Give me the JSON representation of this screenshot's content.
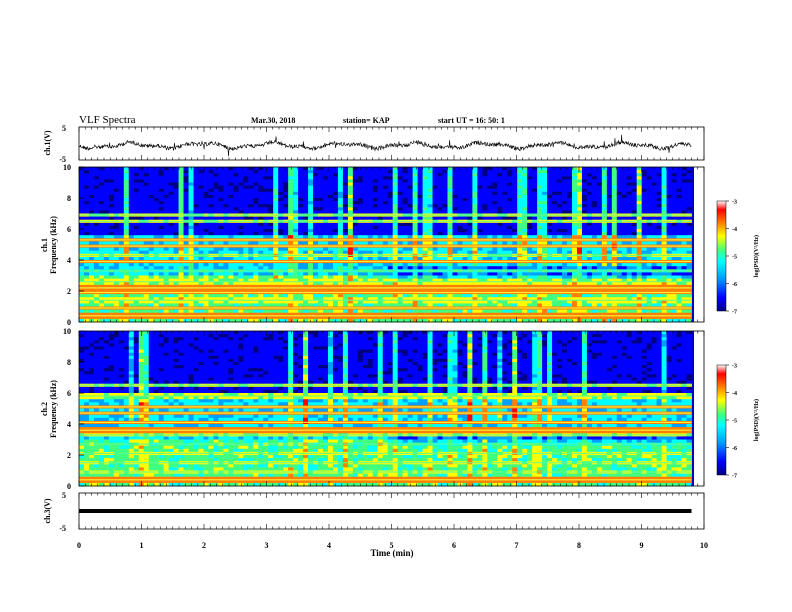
{
  "header": {
    "title": "VLF Spectra",
    "date": "Mar.30, 2018",
    "station": "station= KAP",
    "start_ut": "start UT = 16: 50: 1"
  },
  "chart_data": [
    {
      "type": "line",
      "name": "ch1-waveform",
      "ylabel": "ch.1(V)",
      "ylim": [
        -5,
        5
      ],
      "yticks": [
        "5",
        "-5"
      ],
      "xlim": [
        0,
        10
      ]
    },
    {
      "type": "heatmap",
      "name": "ch1-spectrogram",
      "ylabel_line1": "ch.1",
      "ylabel_line2": "Frequency (kHz)",
      "ylim": [
        0,
        10
      ],
      "yticks": [
        "0",
        "2",
        "4",
        "6",
        "8",
        "10"
      ],
      "xlim": [
        0,
        10
      ],
      "bands_khz": [
        {
          "f": 0.4,
          "level": "high"
        },
        {
          "f": 0.9,
          "level": "high"
        },
        {
          "f": 1.4,
          "level": "mid"
        },
        {
          "f": 1.9,
          "level": "high"
        },
        {
          "f": 2.2,
          "level": "high"
        },
        {
          "f": 2.6,
          "level": "mid"
        },
        {
          "f": 3.3,
          "level": "low"
        },
        {
          "f": 3.9,
          "level": "high"
        },
        {
          "f": 4.3,
          "level": "mid"
        },
        {
          "f": 4.9,
          "level": "high"
        },
        {
          "f": 5.3,
          "level": "high"
        },
        {
          "f": 6.5,
          "level": "mid"
        },
        {
          "f": 6.9,
          "level": "mid"
        }
      ],
      "colorbar": {
        "label": "log(PSD)(V²/Hz)",
        "ticks": [
          "-3",
          "-4",
          "-5",
          "-6",
          "-7"
        ],
        "range": [
          -7,
          -3
        ]
      }
    },
    {
      "type": "heatmap",
      "name": "ch2-spectrogram",
      "ylabel_line1": "ch.2",
      "ylabel_line2": "Frequency (kHz)",
      "ylim": [
        0,
        10
      ],
      "yticks": [
        "0",
        "2",
        "4",
        "6",
        "8",
        "10"
      ],
      "xlim": [
        0,
        10
      ],
      "bands_khz": [
        {
          "f": 0.4,
          "level": "high"
        },
        {
          "f": 0.9,
          "level": "mid"
        },
        {
          "f": 1.5,
          "level": "mid"
        },
        {
          "f": 2.1,
          "level": "mid"
        },
        {
          "f": 2.7,
          "level": "low"
        },
        {
          "f": 3.3,
          "level": "mid"
        },
        {
          "f": 3.6,
          "level": "high"
        },
        {
          "f": 4.1,
          "level": "high"
        },
        {
          "f": 4.7,
          "level": "high"
        },
        {
          "f": 5.1,
          "level": "high"
        },
        {
          "f": 5.8,
          "level": "mid"
        },
        {
          "f": 6.5,
          "level": "mid"
        }
      ],
      "colorbar": {
        "label": "log(PSD)(V²/Hz)",
        "ticks": [
          "-3",
          "-4",
          "-5",
          "-6",
          "-7"
        ],
        "range": [
          -7,
          -3
        ]
      }
    },
    {
      "type": "line",
      "name": "ch3-waveform",
      "ylabel": "ch.3(V)",
      "ylim": [
        -5,
        5
      ],
      "yticks": [
        "5",
        "-5"
      ],
      "xlim": [
        0,
        10
      ],
      "constant_value": 0
    }
  ],
  "xaxis": {
    "label": "Time (min)",
    "ticks": [
      "0",
      "1",
      "2",
      "3",
      "4",
      "5",
      "6",
      "7",
      "8",
      "9",
      "10"
    ],
    "data_end_min": 9.8
  },
  "colors": {
    "colormap": [
      "#000080",
      "#0000ff",
      "#00a0ff",
      "#00ffff",
      "#40ff80",
      "#ffff00",
      "#ff8000",
      "#ff0000",
      "#ffffff"
    ]
  }
}
